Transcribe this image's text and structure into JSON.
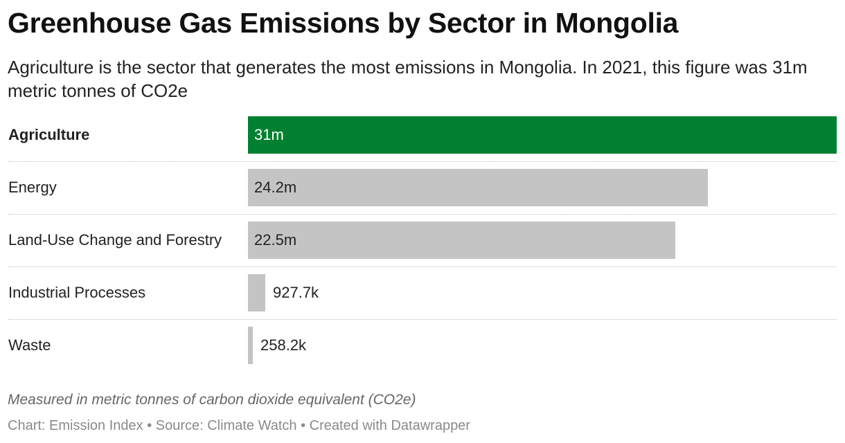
{
  "title": "Greenhouse Gas Emissions by Sector in Mongolia",
  "subtitle": "Agriculture is the sector that generates the most emissions in Mongolia. In 2021, this figure was 31m metric tonnes of CO2e",
  "note": "Measured in metric tonnes of carbon dioxide equivalent (CO2e)",
  "footer": "Chart: Emission Index • Source: Climate Watch • Created with Datawrapper",
  "colors": {
    "highlight": "#008030",
    "default_bar": "#c4c4c4",
    "highlight_text": "#ffffff",
    "default_text": "#222222"
  },
  "chart_data": {
    "type": "bar",
    "orientation": "horizontal",
    "title": "Greenhouse Gas Emissions by Sector in Mongolia",
    "categories": [
      "Agriculture",
      "Energy",
      "Land-Use Change and Forestry",
      "Industrial Processes",
      "Waste"
    ],
    "values": [
      31000000,
      24200000,
      22500000,
      927700,
      258200
    ],
    "value_labels": [
      "31m",
      "24.2m",
      "22.5m",
      "927.7k",
      "258.2k"
    ],
    "highlighted": [
      "Agriculture"
    ],
    "xlim": [
      0,
      31000000
    ],
    "grid": false,
    "legend": "none"
  }
}
